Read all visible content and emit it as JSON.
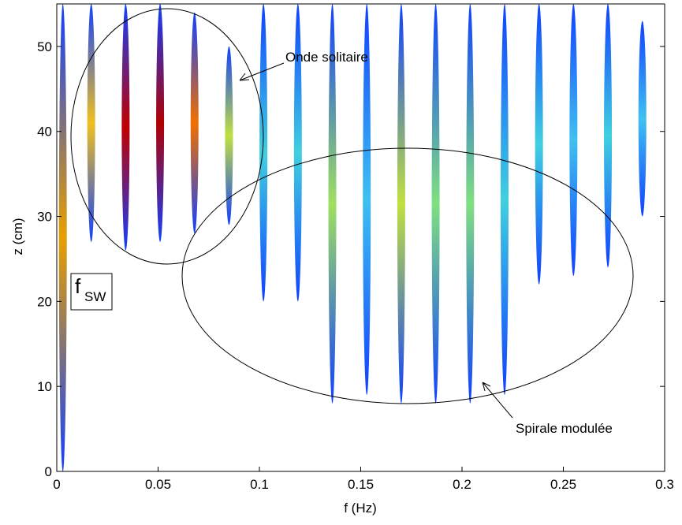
{
  "chart_data": {
    "type": "spectrogram",
    "xlabel": "f (Hz)",
    "ylabel": "z (cm)",
    "xlim": [
      0,
      0.3
    ],
    "ylim": [
      0,
      55
    ],
    "xticks": [
      0,
      0.05,
      0.1,
      0.15,
      0.2,
      0.25,
      0.3
    ],
    "yticks": [
      0,
      10,
      20,
      30,
      40,
      50
    ],
    "x": [
      0.003,
      0.017,
      0.034,
      0.051,
      0.068,
      0.085,
      0.102,
      0.119,
      0.136,
      0.153,
      0.17,
      0.187,
      0.204,
      0.221,
      0.238,
      0.255,
      0.272,
      0.289
    ],
    "zmin": [
      0,
      27,
      26,
      27,
      28,
      29,
      20,
      20,
      8,
      9,
      8,
      8,
      8,
      9,
      22,
      23,
      24,
      30
    ],
    "zmax": [
      55,
      55,
      55,
      55,
      54,
      50,
      55,
      55,
      55,
      55,
      55,
      55,
      55,
      55,
      55,
      55,
      55,
      53
    ],
    "core_colors": [
      "#e8a000",
      "#f0c020",
      "#c00000",
      "#b00000",
      "#f07000",
      "#c0e040",
      "#40d0e0",
      "#40d0e0",
      "#a0e060",
      "#40c0f0",
      "#c0e040",
      "#80e080",
      "#80e080",
      "#40d0e0",
      "#40d0e0",
      "#40c0f0",
      "#40d0e0",
      "#40c0f0"
    ],
    "edge_color": "#1040ff",
    "annotations": {
      "solitary": "Onde solitaire",
      "modulated": "Spirale modulée",
      "fsw_main": "f",
      "fsw_sub": "SW"
    }
  }
}
